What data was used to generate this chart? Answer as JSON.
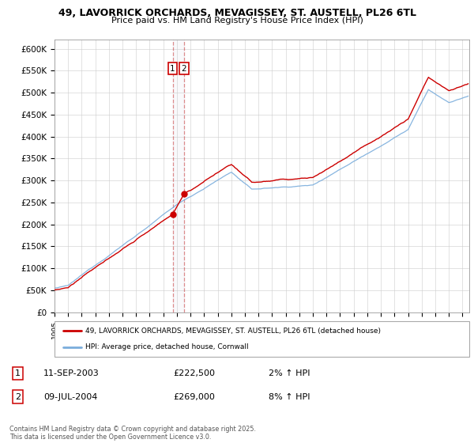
{
  "title": "49, LAVORRICK ORCHARDS, MEVAGISSEY, ST. AUSTELL, PL26 6TL",
  "subtitle": "Price paid vs. HM Land Registry's House Price Index (HPI)",
  "ylim": [
    0,
    620000
  ],
  "yticks": [
    0,
    50000,
    100000,
    150000,
    200000,
    250000,
    300000,
    350000,
    400000,
    450000,
    500000,
    550000,
    600000
  ],
  "ytick_labels": [
    "£0",
    "£50K",
    "£100K",
    "£150K",
    "£200K",
    "£250K",
    "£300K",
    "£350K",
    "£400K",
    "£450K",
    "£500K",
    "£550K",
    "£600K"
  ],
  "sale1_date": 2003.69,
  "sale1_price": 222500,
  "sale2_date": 2004.52,
  "sale2_price": 269000,
  "line1_color": "#cc0000",
  "line2_color": "#7aaddc",
  "grid_color": "#cccccc",
  "legend1": "49, LAVORRICK ORCHARDS, MEVAGISSEY, ST. AUSTELL, PL26 6TL (detached house)",
  "legend2": "HPI: Average price, detached house, Cornwall",
  "table_row1": [
    "1",
    "11-SEP-2003",
    "£222,500",
    "2% ↑ HPI"
  ],
  "table_row2": [
    "2",
    "09-JUL-2004",
    "£269,000",
    "8% ↑ HPI"
  ],
  "footer": "Contains HM Land Registry data © Crown copyright and database right 2025.\nThis data is licensed under the Open Government Licence v3.0.",
  "xmin": 1995,
  "xmax": 2025.5
}
